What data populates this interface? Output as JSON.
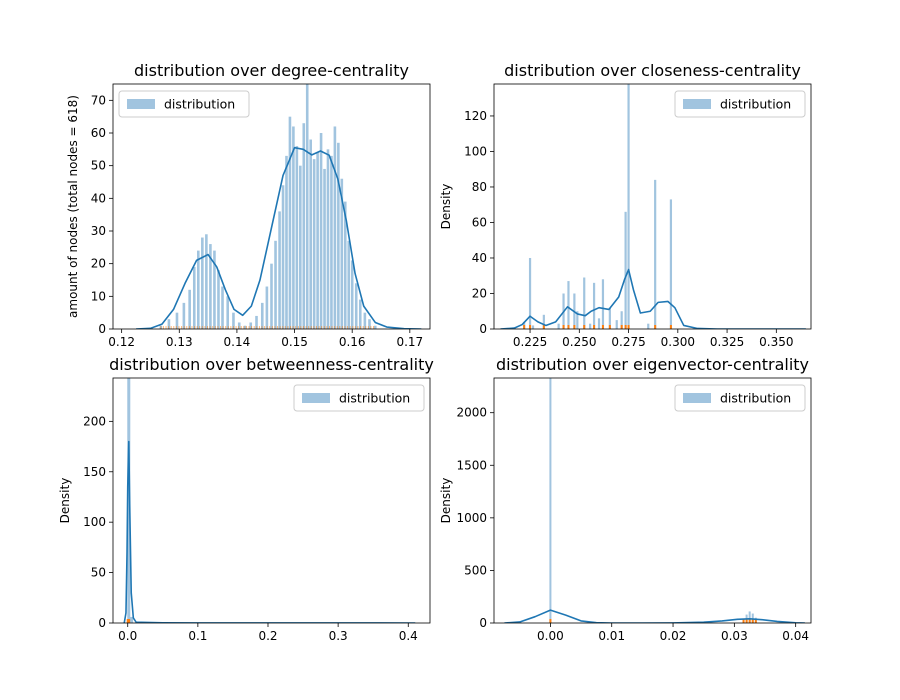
{
  "colors": {
    "hist": "#a1c4df",
    "kde": "#1f77b4",
    "rug": "#ff7f0e",
    "background": "#ffffff"
  },
  "chart_data": [
    {
      "type": "bar",
      "title": "distribution over degree-centrality",
      "xlabel": "",
      "ylabel": "amount of nodes (total nodes = 618)",
      "xlim": [
        0.1185,
        0.1735
      ],
      "ylim": [
        0,
        75
      ],
      "xticks": [
        0.12,
        0.13,
        0.14,
        0.15,
        0.16,
        0.17
      ],
      "xtick_labels": [
        "0.12",
        "0.13",
        "0.14",
        "0.15",
        "0.16",
        "0.17"
      ],
      "yticks": [
        0,
        10,
        20,
        30,
        40,
        50,
        60,
        70
      ],
      "ytick_labels": [
        "0",
        "10",
        "20",
        "30",
        "40",
        "50",
        "60",
        "70"
      ],
      "legend": {
        "label": "distribution",
        "position": "upper left"
      },
      "hist_bins": [
        [
          0.1268,
          1
        ],
        [
          0.1282,
          3
        ],
        [
          0.1296,
          5
        ],
        [
          0.1308,
          8
        ],
        [
          0.1318,
          12
        ],
        [
          0.1326,
          19
        ],
        [
          0.1333,
          24
        ],
        [
          0.134,
          28
        ],
        [
          0.1347,
          29
        ],
        [
          0.1354,
          26
        ],
        [
          0.1361,
          24
        ],
        [
          0.1368,
          18
        ],
        [
          0.1375,
          13
        ],
        [
          0.1384,
          10
        ],
        [
          0.1394,
          5
        ],
        [
          0.1404,
          2
        ],
        [
          0.1414,
          1
        ],
        [
          0.1424,
          2
        ],
        [
          0.1434,
          4
        ],
        [
          0.1444,
          8
        ],
        [
          0.1452,
          13
        ],
        [
          0.146,
          20
        ],
        [
          0.1467,
          27
        ],
        [
          0.1474,
          36
        ],
        [
          0.148,
          44
        ],
        [
          0.1486,
          53
        ],
        [
          0.1492,
          65
        ],
        [
          0.1498,
          62
        ],
        [
          0.1504,
          56
        ],
        [
          0.151,
          50
        ],
        [
          0.1516,
          63
        ],
        [
          0.1522,
          75
        ],
        [
          0.1528,
          58
        ],
        [
          0.1534,
          52
        ],
        [
          0.154,
          54
        ],
        [
          0.1546,
          60
        ],
        [
          0.1552,
          49
        ],
        [
          0.1558,
          55
        ],
        [
          0.1564,
          53
        ],
        [
          0.157,
          62
        ],
        [
          0.1576,
          57
        ],
        [
          0.1582,
          46
        ],
        [
          0.1588,
          39
        ],
        [
          0.1594,
          27
        ],
        [
          0.16,
          21
        ],
        [
          0.1607,
          14
        ],
        [
          0.1614,
          9
        ],
        [
          0.1622,
          5
        ],
        [
          0.163,
          3
        ],
        [
          0.164,
          1
        ]
      ],
      "kde": {
        "x": [
          0.1225,
          0.125,
          0.127,
          0.129,
          0.131,
          0.133,
          0.135,
          0.1365,
          0.138,
          0.1395,
          0.141,
          0.1425,
          0.144,
          0.146,
          0.148,
          0.15,
          0.1515,
          0.153,
          0.1545,
          0.156,
          0.1575,
          0.159,
          0.1605,
          0.162,
          0.164,
          0.166,
          0.169,
          0.172
        ],
        "y": [
          0,
          0.2,
          1.5,
          6,
          14,
          21,
          22.8,
          19,
          12,
          6,
          4.2,
          7,
          15,
          31,
          47,
          55.5,
          55,
          53.3,
          54.5,
          53.2,
          46,
          33,
          17,
          7,
          2,
          0.6,
          0.1,
          0
        ]
      },
      "rug_range": [
        0.1268,
        0.164
      ]
    },
    {
      "type": "bar",
      "title": "distribution over closeness-centrality",
      "xlabel": "",
      "ylabel": "Density",
      "xlim": [
        0.2067,
        0.3676
      ],
      "ylim": [
        0,
        138
      ],
      "xticks": [
        0.225,
        0.25,
        0.275,
        0.3,
        0.325,
        0.35
      ],
      "xtick_labels": [
        "0.225",
        "0.250",
        "0.275",
        "0.300",
        "0.325",
        "0.350"
      ],
      "yticks": [
        0,
        20,
        40,
        60,
        80,
        100,
        120
      ],
      "ytick_labels": [
        "0",
        "20",
        "40",
        "60",
        "80",
        "100",
        "120"
      ],
      "legend": {
        "label": "distribution",
        "position": "upper right"
      },
      "hist_bins": [
        [
          0.222,
          4
        ],
        [
          0.225,
          40
        ],
        [
          0.2265,
          2
        ],
        [
          0.232,
          8
        ],
        [
          0.2395,
          3
        ],
        [
          0.242,
          20
        ],
        [
          0.2445,
          27
        ],
        [
          0.2475,
          20
        ],
        [
          0.249,
          10
        ],
        [
          0.2525,
          29
        ],
        [
          0.2555,
          3
        ],
        [
          0.2575,
          26
        ],
        [
          0.26,
          6
        ],
        [
          0.262,
          28
        ],
        [
          0.2655,
          12
        ],
        [
          0.269,
          5
        ],
        [
          0.2715,
          10
        ],
        [
          0.2735,
          66
        ],
        [
          0.275,
          138
        ],
        [
          0.285,
          3
        ],
        [
          0.2885,
          84
        ],
        [
          0.2965,
          73
        ]
      ],
      "kde": {
        "x": [
          0.21,
          0.217,
          0.221,
          0.225,
          0.229,
          0.233,
          0.238,
          0.244,
          0.249,
          0.253,
          0.256,
          0.26,
          0.265,
          0.27,
          0.273,
          0.275,
          0.2775,
          0.281,
          0.286,
          0.29,
          0.295,
          0.2985,
          0.303,
          0.31,
          0.32,
          0.34,
          0.365
        ],
        "y": [
          0,
          0.5,
          2.5,
          7.2,
          4,
          2,
          4,
          12.5,
          8.5,
          7.5,
          10,
          12,
          11,
          18,
          28,
          33.5,
          22,
          9,
          10,
          15,
          15.5,
          12,
          2,
          0.3,
          0,
          0,
          0
        ]
      },
      "rug_points": [
        0.222,
        0.225,
        0.232,
        0.242,
        0.2445,
        0.2475,
        0.2525,
        0.2575,
        0.262,
        0.2655,
        0.2715,
        0.2735,
        0.275,
        0.2885,
        0.2965
      ]
    },
    {
      "type": "bar",
      "title": "distribution over betweenness-centrality",
      "xlabel": "",
      "ylabel": "Density",
      "xlim": [
        -0.021,
        0.431
      ],
      "ylim": [
        0,
        243
      ],
      "xticks": [
        0.0,
        0.1,
        0.2,
        0.3,
        0.4
      ],
      "xtick_labels": [
        "0.0",
        "0.1",
        "0.2",
        "0.3",
        "0.4"
      ],
      "yticks": [
        0,
        50,
        100,
        150,
        200
      ],
      "ytick_labels": [
        "0",
        "50",
        "100",
        "150",
        "200"
      ],
      "legend": {
        "label": "distribution",
        "position": "upper right"
      },
      "hist_bins": [
        [
          0.0015,
          243
        ],
        [
          0.0055,
          6
        ]
      ],
      "kde": {
        "x": [
          -0.005,
          -0.0025,
          -0.001,
          0.0,
          0.0015,
          0.003,
          0.005,
          0.008,
          0.012,
          0.05,
          0.1,
          0.2,
          0.3,
          0.41
        ],
        "y": [
          0,
          10,
          70,
          135,
          180,
          110,
          30,
          5,
          0.8,
          0.2,
          0.1,
          0.05,
          0.05,
          0
        ]
      },
      "rug_points": [
        0.0,
        0.001,
        0.002
      ]
    },
    {
      "type": "bar",
      "title": "distribution over eigenvector-centrality",
      "xlabel": "",
      "ylabel": "Density",
      "xlim": [
        -0.0092,
        0.0425
      ],
      "ylim": [
        0,
        2330
      ],
      "xticks": [
        0.0,
        0.01,
        0.02,
        0.03,
        0.04
      ],
      "xtick_labels": [
        "0.00",
        "0.01",
        "0.02",
        "0.03",
        "0.04"
      ],
      "yticks": [
        0,
        500,
        1000,
        1500,
        2000
      ],
      "ytick_labels": [
        "0",
        "500",
        "1000",
        "1500",
        "2000"
      ],
      "legend": {
        "label": "distribution",
        "position": "upper right"
      },
      "hist_bins": [
        [
          0.0,
          2330
        ],
        [
          0.0315,
          40
        ],
        [
          0.032,
          80
        ],
        [
          0.0325,
          110
        ],
        [
          0.033,
          90
        ],
        [
          0.0335,
          50
        ]
      ],
      "kde": {
        "x": [
          -0.0075,
          -0.005,
          -0.0025,
          0.0,
          0.0025,
          0.005,
          0.0075,
          0.01,
          0.015,
          0.02,
          0.025,
          0.028,
          0.0305,
          0.0325,
          0.0345,
          0.037,
          0.04,
          0.0415
        ],
        "y": [
          0,
          10,
          60,
          122,
          75,
          20,
          3,
          0,
          0,
          1,
          8,
          20,
          35,
          40,
          32,
          15,
          2,
          0
        ]
      },
      "rug_points": [
        0.0,
        0.0315,
        0.032,
        0.0325,
        0.033,
        0.0335
      ]
    }
  ]
}
